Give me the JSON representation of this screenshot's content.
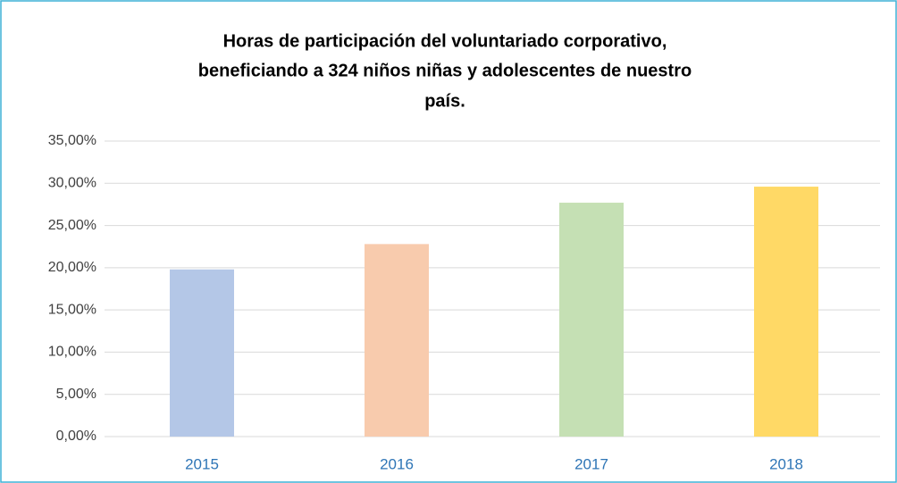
{
  "chart_data": {
    "type": "bar",
    "title": [
      "Horas de participación del voluntariado corporativo,",
      "beneficiando a 324 niños niñas y adolescentes de nuestro",
      "país."
    ],
    "categories": [
      "2015",
      "2016",
      "2017",
      "2018"
    ],
    "values": [
      19.8,
      22.8,
      27.7,
      29.6
    ],
    "colors": [
      "#b4c7e7",
      "#f8cbad",
      "#c5e0b4",
      "#ffd966"
    ],
    "ylim": [
      0,
      35
    ],
    "yticks": [
      {
        "value": 0,
        "label": "0,00%"
      },
      {
        "value": 5,
        "label": "5,00%"
      },
      {
        "value": 10,
        "label": "10,00%"
      },
      {
        "value": 15,
        "label": "15,00%"
      },
      {
        "value": 20,
        "label": "20,00%"
      },
      {
        "value": 25,
        "label": "25,00%"
      },
      {
        "value": 30,
        "label": "30,00%"
      },
      {
        "value": 35,
        "label": "35,00%"
      }
    ],
    "grid": true
  }
}
